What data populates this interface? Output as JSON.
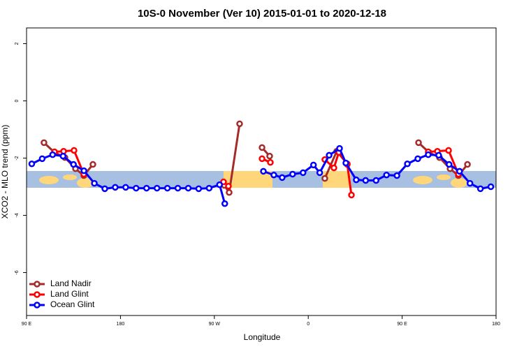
{
  "chart_data": {
    "type": "line",
    "title": "10S-0 November (Ver 10)   2015-01-01 to 2020-12-18",
    "xlabel": "Longitude",
    "ylabel": "XCO2 - MLO trend (ppm)",
    "xlim": [
      90,
      540
    ],
    "xticks": [
      {
        "value": 90,
        "label": "90 E"
      },
      180,
      {
        "value": 270,
        "label": "90 W"
      },
      {
        "value": 360,
        "label": "0"
      },
      {
        "value": 450,
        "label": "90 E"
      },
      {
        "value": 540,
        "label": "180"
      }
    ],
    "ylim": [
      -7.5,
      2.55
    ],
    "yticks": [
      2,
      0,
      -2,
      -4,
      -6
    ],
    "legend": "bottom-left",
    "series": [
      {
        "name": "Land Nadir",
        "color": "#a52a2a",
        "x": [
          106.7,
          116.8,
          126.8,
          136.9,
          144.9,
          153.6,
          null,
          279.5,
          284.2,
          294.2,
          null,
          315.7,
          323.0,
          null,
          375.9,
          387.3,
          397.4,
          null,
          465.7,
          475.7,
          485.8,
          495.9,
          503.9,
          512.6
        ],
        "values": [
          -1.46,
          -1.8,
          -1.98,
          -2.37,
          -2.61,
          -2.22,
          null,
          -2.95,
          -3.2,
          -0.8,
          null,
          -1.63,
          -1.93,
          null,
          -2.71,
          -1.76,
          -2.2,
          null,
          -1.46,
          -1.8,
          -1.98,
          -2.37,
          -2.61,
          -2.22
        ]
      },
      {
        "name": "Land Glint",
        "color": "#ff0000",
        "x": [
          116.8,
          125.5,
          135.5,
          144.9,
          null,
          278.8,
          283.5,
          null,
          315.7,
          323.7,
          null,
          375.9,
          384.6,
          389.3,
          397.4,
          401.4,
          null,
          475.0,
          483.8,
          494.5,
          503.9
        ],
        "values": [
          -1.78,
          -1.76,
          -1.73,
          -2.56,
          null,
          -2.83,
          -2.98,
          null,
          -2.02,
          -2.15,
          null,
          -2.05,
          -2.34,
          -1.8,
          -2.22,
          -3.29,
          null,
          -1.78,
          -1.76,
          -1.73,
          -2.56
        ]
      },
      {
        "name": "Ocean Glint",
        "color": "#0000ff",
        "x": [
          95,
          105,
          115,
          125,
          135,
          145,
          155,
          165,
          175,
          185,
          195,
          205,
          215,
          225,
          235,
          245,
          255,
          265,
          275,
          280,
          null,
          317,
          327,
          335,
          345,
          355,
          365,
          371,
          380,
          390,
          396,
          406,
          415,
          425,
          435,
          445,
          455,
          465,
          475,
          485,
          495,
          505,
          515,
          525,
          535
        ],
        "values": [
          -2.2,
          -2.02,
          -1.88,
          -1.93,
          -2.22,
          -2.44,
          -2.88,
          -3.07,
          -3.02,
          -3.02,
          -3.05,
          -3.05,
          -3.05,
          -3.05,
          -3.05,
          -3.05,
          -3.07,
          -3.05,
          -2.93,
          -3.59,
          null,
          -2.46,
          -2.59,
          -2.68,
          -2.56,
          -2.51,
          -2.24,
          -2.51,
          -1.9,
          -1.66,
          -2.17,
          -2.76,
          -2.78,
          -2.78,
          -2.59,
          -2.61,
          -2.2,
          -2.02,
          -1.88,
          -1.9,
          -2.22,
          -2.46,
          -2.88,
          -3.07,
          -3.0
        ]
      }
    ]
  }
}
